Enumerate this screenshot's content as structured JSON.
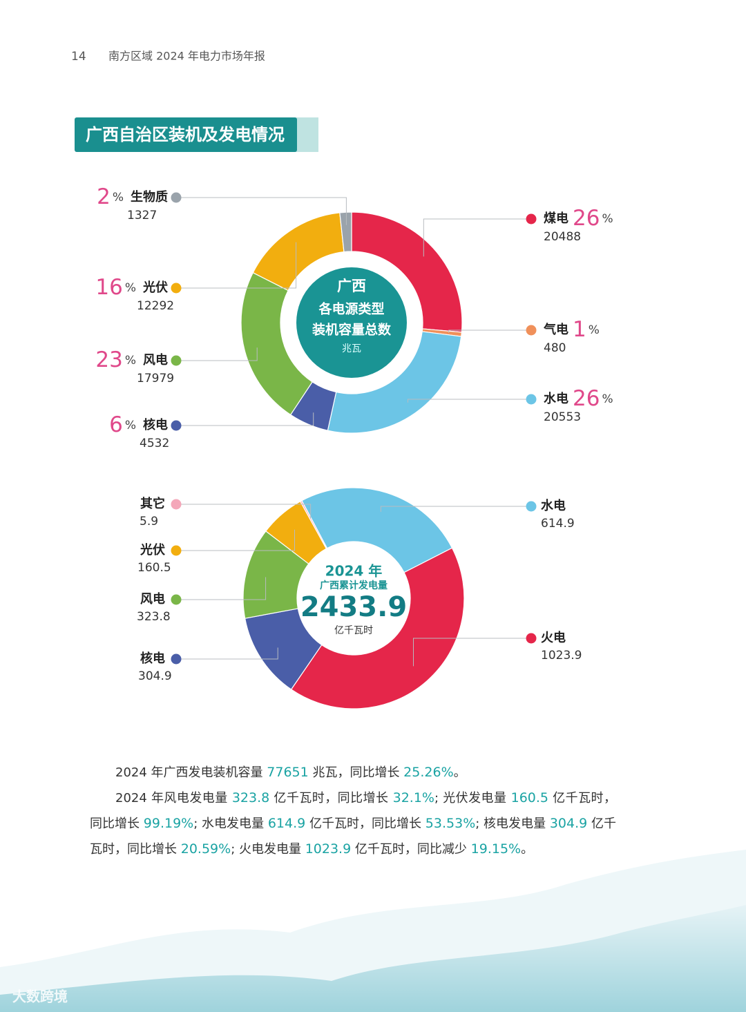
{
  "header": {
    "page": "14",
    "title": "南方区域 2024 年电力市场年报"
  },
  "section_title": "广西自治区装机及发电情况",
  "chart_data": [
    {
      "type": "donut",
      "center_lines": [
        "广西",
        "各电源类型",
        "装机容量总数"
      ],
      "unit": "兆瓦",
      "categories": [
        "煤电",
        "气电",
        "水电",
        "核电",
        "风电",
        "光伏",
        "生物质"
      ],
      "values": [
        20488,
        480,
        20553,
        4532,
        17979,
        12292,
        1327
      ],
      "percents": [
        26,
        1,
        26,
        6,
        23,
        16,
        2
      ],
      "percent_sign": "%",
      "colors": [
        "#e5264a",
        "#f0905a",
        "#6cc5e6",
        "#4a5ea8",
        "#7ab648",
        "#f2ae0f",
        "#9aa3ab"
      ]
    },
    {
      "type": "donut",
      "center_title": "2024 年",
      "center_subtitle": "广西累计发电量",
      "total": "2433.9",
      "unit": "亿千瓦时",
      "categories": [
        "水电",
        "火电",
        "核电",
        "风电",
        "光伏",
        "其它"
      ],
      "values": [
        614.9,
        1023.9,
        304.9,
        323.8,
        160.5,
        5.9
      ],
      "colors": [
        "#6cc5e6",
        "#e5264a",
        "#4a5ea8",
        "#7ab648",
        "#f2ae0f",
        "#f4a7b9"
      ]
    }
  ],
  "paragraphs": [
    [
      "2024 年广西发电装机容量 ",
      "77651",
      " 兆瓦，同比增长 ",
      "25.26%",
      "。"
    ],
    [
      "2024 年风电发电量 ",
      "323.8",
      " 亿千瓦时，同比增长 ",
      "32.1%",
      "; 光伏发电量 ",
      "160.5",
      " 亿千瓦时，同比增长 ",
      "99.19%",
      "; 水电发电量 ",
      "614.9",
      " 亿千瓦时，同比增长 ",
      "53.53%",
      "; 核电发电量 ",
      "304.9",
      " 亿千瓦时，同比增长 ",
      "20.59%",
      "; 火电发电量 ",
      "1023.9",
      " 亿千瓦时，同比减少 ",
      "19.15%",
      "。"
    ]
  ],
  "watermark": "大数跨境"
}
